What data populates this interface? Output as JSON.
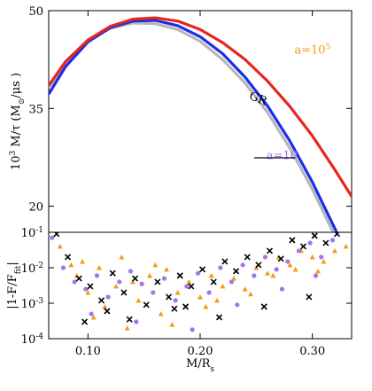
{
  "chart_data": [
    {
      "panel": "top",
      "type": "line",
      "xlabel": "M/R_s",
      "ylabel": "10^3 M/τ (M_⊙/μs)",
      "xlim": [
        0.065,
        0.335
      ],
      "ylim": [
        16,
        50
      ],
      "yticks": [
        20,
        35,
        50
      ],
      "ytick_labels": [
        "20",
        "35",
        "50"
      ],
      "grid": false,
      "annotations": [
        {
          "text": "a=10",
          "sup": "5",
          "color": "#f59a16",
          "x": 0.284,
          "y": 43.4
        },
        {
          "text": "GR",
          "color": "#000000",
          "x": 0.243,
          "y": 36.5
        },
        {
          "text": "a=10",
          "color": "#a473f0",
          "x": 0.259,
          "y": 27.2
        }
      ],
      "series": [
        {
          "name": "a=10^5",
          "color": "#e8251f",
          "x": [
            0.065,
            0.08,
            0.1,
            0.12,
            0.14,
            0.16,
            0.18,
            0.2,
            0.22,
            0.24,
            0.26,
            0.28,
            0.3,
            0.32,
            0.335
          ],
          "y": [
            38.5,
            42.2,
            45.5,
            47.6,
            48.7,
            48.9,
            48.4,
            47.1,
            45.1,
            42.5,
            39.2,
            35.3,
            30.8,
            25.6,
            21.5
          ]
        },
        {
          "name": "a=10",
          "color": "#1a2ee8",
          "x": [
            0.065,
            0.08,
            0.1,
            0.12,
            0.14,
            0.16,
            0.18,
            0.2,
            0.22,
            0.24,
            0.26,
            0.28,
            0.3,
            0.32,
            0.327
          ],
          "y": [
            37.2,
            41.4,
            45.2,
            47.4,
            48.4,
            48.5,
            47.7,
            46.0,
            43.4,
            39.8,
            35.4,
            30.0,
            23.7,
            16.6,
            14.0
          ]
        },
        {
          "name": "GR",
          "color": "#b7b7b7",
          "x": [
            0.065,
            0.08,
            0.1,
            0.12,
            0.14,
            0.16,
            0.18,
            0.2,
            0.22,
            0.24,
            0.26,
            0.28,
            0.3,
            0.32,
            0.325
          ],
          "y": [
            38.2,
            41.9,
            45.4,
            47.3,
            48.1,
            48.0,
            47.1,
            45.3,
            42.5,
            38.9,
            34.4,
            28.9,
            22.6,
            15.5,
            13.5
          ]
        }
      ]
    },
    {
      "panel": "bottom",
      "type": "scatter",
      "xlabel": "M/R_s",
      "ylabel": "|1-F/F_fit|",
      "xlim": [
        0.065,
        0.335
      ],
      "ylim": [
        0.0001,
        0.1
      ],
      "yscale": "log",
      "xticks": [
        0.1,
        0.2,
        0.3
      ],
      "xtick_labels": [
        "0.10",
        "0.20",
        "0.30"
      ],
      "yticks": [
        0.0001,
        0.001,
        0.01,
        0.1
      ],
      "ytick_labels": [
        "10^-4",
        "10^-3",
        "10^-2",
        "10^-1"
      ],
      "grid": false,
      "series": [
        {
          "name": "orange",
          "color": "#f59a16",
          "marker": "triangle",
          "points": [
            [
              0.075,
              0.04
            ],
            [
              0.09,
              0.006
            ],
            [
              0.1,
              0.002
            ],
            [
              0.11,
              0.01
            ],
            [
              0.115,
              0.0008
            ],
            [
              0.125,
              0.003
            ],
            [
              0.13,
              0.02
            ],
            [
              0.14,
              0.004
            ],
            [
              0.145,
              0.0012
            ],
            [
              0.155,
              0.006
            ],
            [
              0.165,
              0.0005
            ],
            [
              0.17,
              0.009
            ],
            [
              0.18,
              0.002
            ],
            [
              0.19,
              0.004
            ],
            [
              0.2,
              0.0015
            ],
            [
              0.205,
              0.0008
            ],
            [
              0.21,
              0.006
            ],
            [
              0.22,
              0.003
            ],
            [
              0.23,
              0.005
            ],
            [
              0.24,
              0.0025
            ],
            [
              0.25,
              0.01
            ],
            [
              0.26,
              0.007
            ],
            [
              0.27,
              0.02
            ],
            [
              0.28,
              0.012
            ],
            [
              0.29,
              0.03
            ],
            [
              0.3,
              0.02
            ],
            [
              0.31,
              0.015
            ],
            [
              0.32,
              0.03
            ],
            [
              0.33,
              0.04
            ],
            [
              0.105,
              0.0004
            ],
            [
              0.135,
              0.0002
            ],
            [
              0.175,
              0.00025
            ],
            [
              0.215,
              0.0012
            ],
            [
              0.265,
              0.006
            ],
            [
              0.305,
              0.008
            ],
            [
              0.085,
              0.012
            ],
            [
              0.095,
              0.015
            ],
            [
              0.16,
              0.012
            ],
            [
              0.245,
              0.0018
            ],
            [
              0.285,
              0.009
            ]
          ]
        },
        {
          "name": "purple",
          "color": "#a473f0",
          "marker": "circle",
          "points": [
            [
              0.068,
              0.07
            ],
            [
              0.078,
              0.01
            ],
            [
              0.088,
              0.004
            ],
            [
              0.098,
              0.0025
            ],
            [
              0.108,
              0.006
            ],
            [
              0.118,
              0.0015
            ],
            [
              0.128,
              0.004
            ],
            [
              0.138,
              0.008
            ],
            [
              0.148,
              0.0035
            ],
            [
              0.158,
              0.002
            ],
            [
              0.168,
              0.005
            ],
            [
              0.178,
              0.0012
            ],
            [
              0.188,
              0.003
            ],
            [
              0.198,
              0.007
            ],
            [
              0.208,
              0.002
            ],
            [
              0.218,
              0.01
            ],
            [
              0.228,
              0.004
            ],
            [
              0.238,
              0.012
            ],
            [
              0.248,
              0.006
            ],
            [
              0.258,
              0.02
            ],
            [
              0.268,
              0.009
            ],
            [
              0.278,
              0.015
            ],
            [
              0.288,
              0.03
            ],
            [
              0.298,
              0.05
            ],
            [
              0.308,
              0.02
            ],
            [
              0.318,
              0.06
            ],
            [
              0.103,
              0.0005
            ],
            [
              0.143,
              0.0003
            ],
            [
              0.193,
              0.00018
            ],
            [
              0.233,
              0.0009
            ],
            [
              0.273,
              0.0025
            ],
            [
              0.303,
              0.006
            ]
          ]
        },
        {
          "name": "black",
          "color": "#000000",
          "marker": "cross",
          "points": [
            [
              0.072,
              0.09
            ],
            [
              0.082,
              0.02
            ],
            [
              0.092,
              0.005
            ],
            [
              0.102,
              0.003
            ],
            [
              0.112,
              0.0012
            ],
            [
              0.122,
              0.007
            ],
            [
              0.132,
              0.002
            ],
            [
              0.142,
              0.005
            ],
            [
              0.152,
              0.0009
            ],
            [
              0.162,
              0.004
            ],
            [
              0.172,
              0.0015
            ],
            [
              0.182,
              0.006
            ],
            [
              0.192,
              0.003
            ],
            [
              0.202,
              0.009
            ],
            [
              0.212,
              0.004
            ],
            [
              0.222,
              0.015
            ],
            [
              0.232,
              0.008
            ],
            [
              0.242,
              0.02
            ],
            [
              0.252,
              0.012
            ],
            [
              0.262,
              0.03
            ],
            [
              0.272,
              0.018
            ],
            [
              0.282,
              0.06
            ],
            [
              0.292,
              0.04
            ],
            [
              0.302,
              0.08
            ],
            [
              0.312,
              0.05
            ],
            [
              0.322,
              0.09
            ],
            [
              0.097,
              0.0003
            ],
            [
              0.137,
              0.00035
            ],
            [
              0.177,
              0.0007
            ],
            [
              0.217,
              0.0004
            ],
            [
              0.257,
              0.0008
            ],
            [
              0.297,
              0.0015
            ],
            [
              0.117,
              0.0006
            ],
            [
              0.187,
              0.0008
            ]
          ]
        }
      ]
    }
  ]
}
